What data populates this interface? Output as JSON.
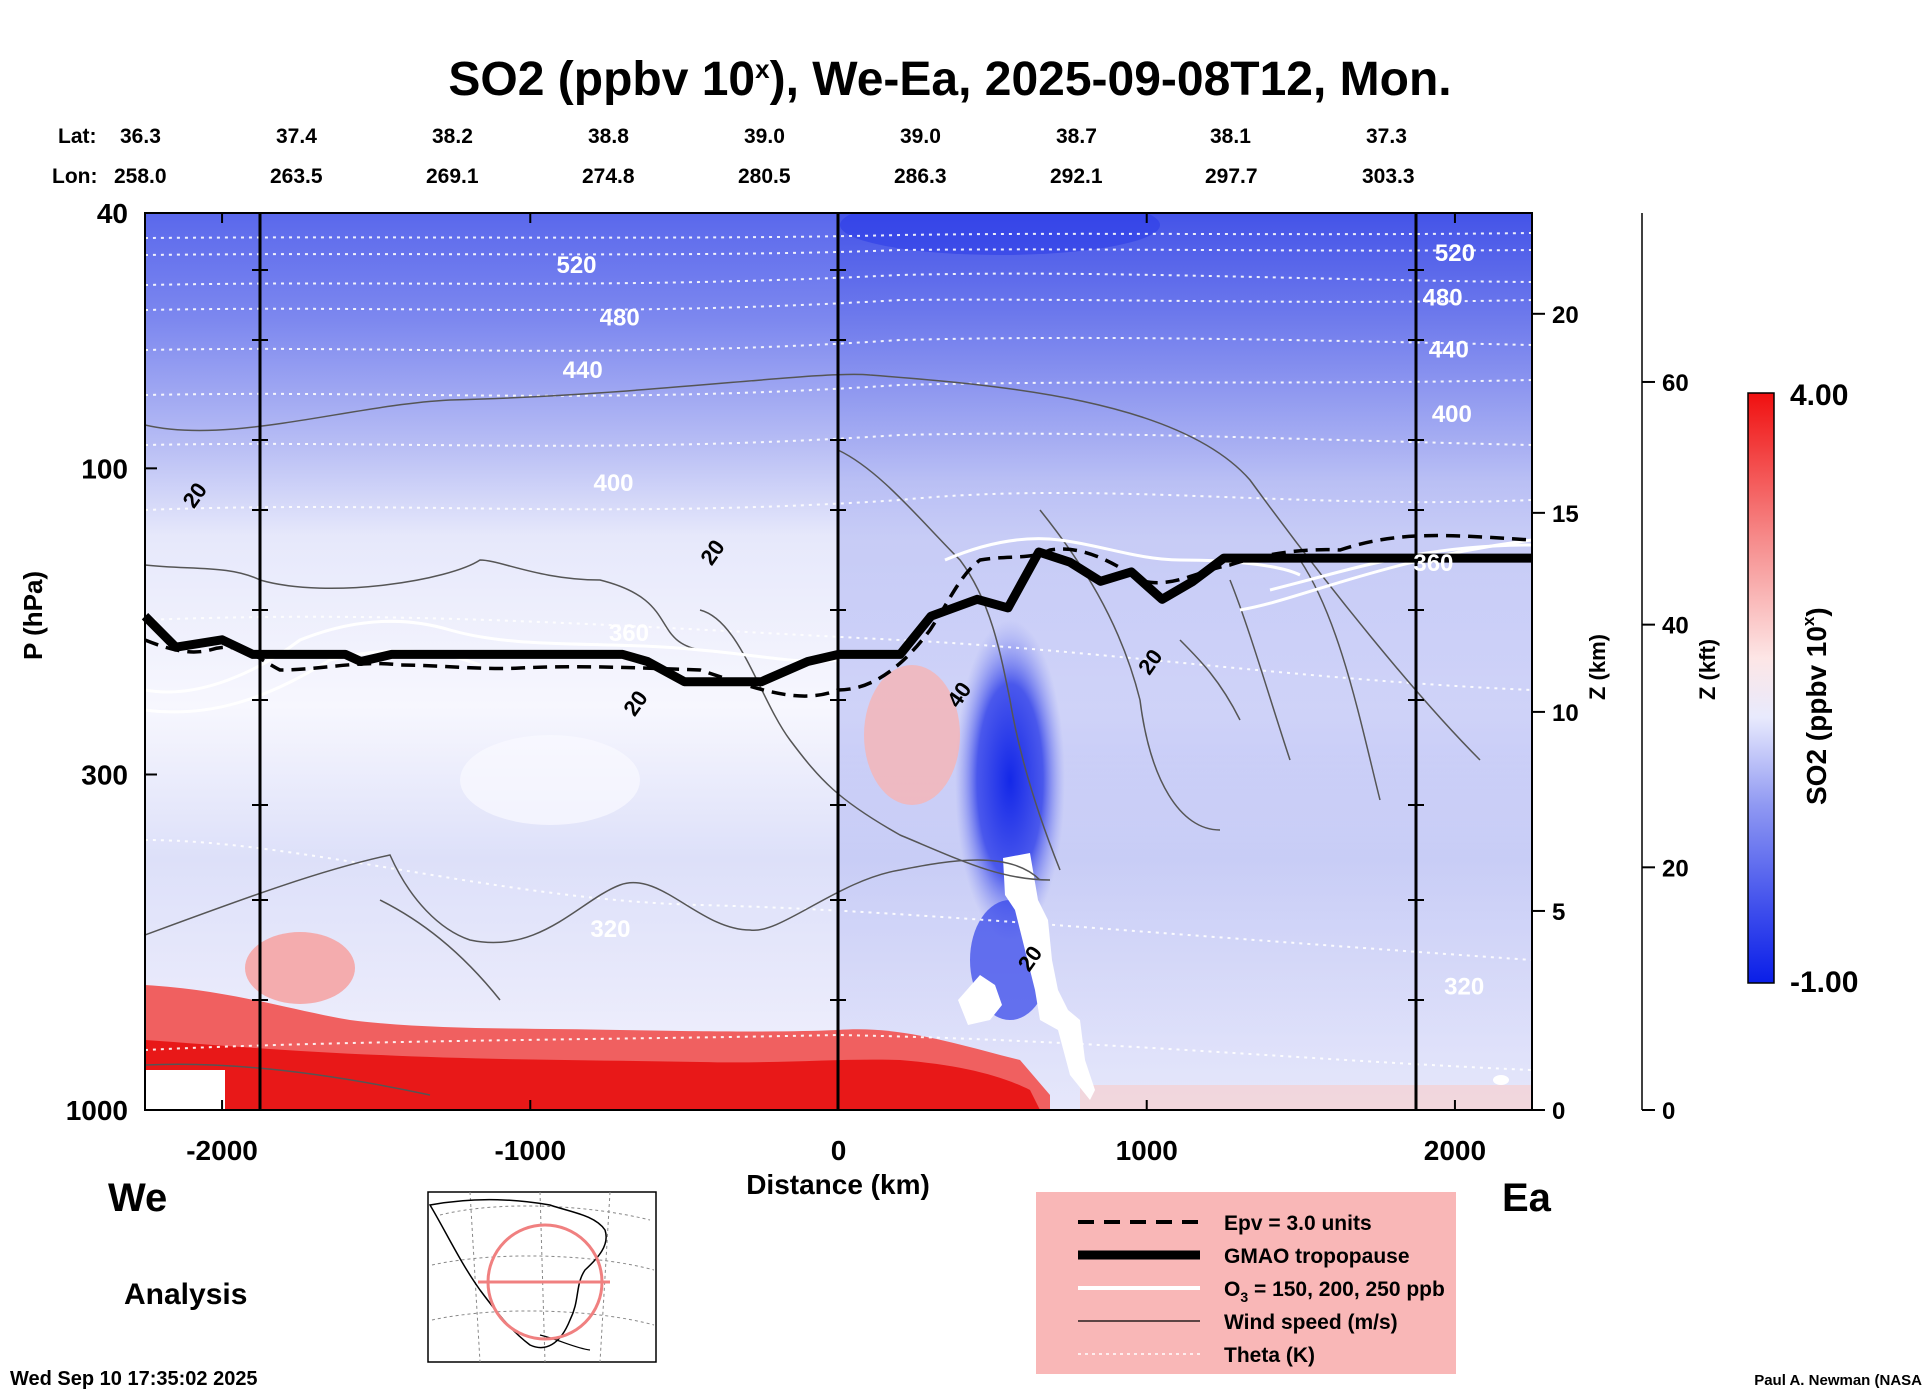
{
  "title": {
    "text": "SO2 (ppbv 10",
    "sup": "x",
    "rest": "), We-Ea, 2025-09-08T12, Mon."
  },
  "lat": {
    "label": "Lat:",
    "values": [
      "36.3",
      "37.4",
      "38.2",
      "38.8",
      "39.0",
      "39.0",
      "38.7",
      "38.1",
      "37.3"
    ]
  },
  "lon": {
    "label": "Lon:",
    "values": [
      "258.0",
      "263.5",
      "269.1",
      "274.8",
      "280.5",
      "286.3",
      "292.1",
      "297.7",
      "303.3"
    ]
  },
  "sides": {
    "west": "We",
    "east": "Ea"
  },
  "analysis": "Analysis",
  "footer": {
    "date": "Wed Sep 10 17:35:02 2025",
    "credit": "Paul A. Newman (NASA"
  },
  "colors": {
    "blue": "#0a1ee8",
    "red": "#f01010",
    "white": "#ffffff",
    "legend_bg": "#f9b7b7"
  },
  "chart_data": {
    "type": "heatmap",
    "title": "SO2 (ppbv 10^x), We-Ea, 2025-09-08T12, Mon.",
    "xlabel": "Distance (km)",
    "ylabel": "P (hPa)",
    "xlim": [
      -2250,
      2250
    ],
    "ylim": [
      1000,
      40
    ],
    "x_ticks": [
      -2000,
      -1000,
      0,
      1000,
      2000
    ],
    "x_tick_labels": [
      "-2000",
      "-1000",
      "0",
      "1000",
      "2000"
    ],
    "y_ticks": [
      40,
      100,
      300,
      1000
    ],
    "y_tick_labels": [
      "40",
      "100",
      "300",
      "1000"
    ],
    "z_km_ticks": [
      0,
      5,
      10,
      15,
      20
    ],
    "z_km_label": "Z (km)",
    "z_kft_ticks": [
      0,
      20,
      40,
      60
    ],
    "z_kft_label": "Z (kft)",
    "colorbar": {
      "label": "SO2 (ppbv 10",
      "label_sup": "x",
      "label_end": ")",
      "min": -1.0,
      "max": 4.0,
      "min_label": "-1.00",
      "max_label": "4.00"
    },
    "vertical_lines_km": [
      -1850,
      0,
      1850
    ],
    "theta_contours": [
      {
        "label": "520",
        "theta_k": 520,
        "pressure_hpa": 48
      },
      {
        "label": "480",
        "theta_k": 480,
        "pressure_hpa": 57
      },
      {
        "label": "440",
        "theta_k": 440,
        "pressure_hpa": 68
      },
      {
        "label": "400",
        "theta_k": 400,
        "pressure_hpa": 86
      },
      {
        "label": "360",
        "theta_k": 360,
        "pressure_hpa": 155
      },
      {
        "label": "320",
        "theta_k": 320,
        "pressure_hpa": 450
      }
    ],
    "theta_labels_plotted": [
      {
        "text": "520",
        "x_km": -850,
        "p_hpa": 48
      },
      {
        "text": "480",
        "x_km": -710,
        "p_hpa": 58
      },
      {
        "text": "440",
        "x_km": -830,
        "p_hpa": 70
      },
      {
        "text": "400",
        "x_km": -730,
        "p_hpa": 105
      },
      {
        "text": "360",
        "x_km": -680,
        "p_hpa": 180
      },
      {
        "text": "320",
        "x_km": -740,
        "p_hpa": 520
      },
      {
        "text": "520",
        "x_km": 2000,
        "p_hpa": 46
      },
      {
        "text": "480",
        "x_km": 1960,
        "p_hpa": 54
      },
      {
        "text": "440",
        "x_km": 1980,
        "p_hpa": 65
      },
      {
        "text": "400",
        "x_km": 1990,
        "p_hpa": 82
      },
      {
        "text": "360",
        "x_km": 1930,
        "p_hpa": 140
      },
      {
        "text": "320",
        "x_km": 2030,
        "p_hpa": 640
      }
    ],
    "wind_labels": [
      {
        "text": "20",
        "x_km": -2090,
        "p_hpa": 110
      },
      {
        "text": "20",
        "x_km": -410,
        "p_hpa": 135
      },
      {
        "text": "20",
        "x_km": -660,
        "p_hpa": 232
      },
      {
        "text": "40",
        "x_km": 390,
        "p_hpa": 225
      },
      {
        "text": "20",
        "x_km": 1010,
        "p_hpa": 200
      },
      {
        "text": "20",
        "x_km": 620,
        "p_hpa": 580
      }
    ],
    "tropopause_hpa": [
      {
        "x_km": -2250,
        "p": 170
      },
      {
        "x_km": -2150,
        "p": 190
      },
      {
        "x_km": -2000,
        "p": 185
      },
      {
        "x_km": -1900,
        "p": 195
      },
      {
        "x_km": -1600,
        "p": 195
      },
      {
        "x_km": -1550,
        "p": 200
      },
      {
        "x_km": -1450,
        "p": 195
      },
      {
        "x_km": -700,
        "p": 195
      },
      {
        "x_km": -620,
        "p": 200
      },
      {
        "x_km": -500,
        "p": 215
      },
      {
        "x_km": -250,
        "p": 215
      },
      {
        "x_km": -100,
        "p": 200
      },
      {
        "x_km": 0,
        "p": 195
      },
      {
        "x_km": 200,
        "p": 195
      },
      {
        "x_km": 300,
        "p": 170
      },
      {
        "x_km": 450,
        "p": 160
      },
      {
        "x_km": 550,
        "p": 165
      },
      {
        "x_km": 650,
        "p": 135
      },
      {
        "x_km": 750,
        "p": 140
      },
      {
        "x_km": 850,
        "p": 150
      },
      {
        "x_km": 950,
        "p": 145
      },
      {
        "x_km": 1050,
        "p": 160
      },
      {
        "x_km": 1150,
        "p": 150
      },
      {
        "x_km": 1250,
        "p": 138
      },
      {
        "x_km": 1400,
        "p": 138
      },
      {
        "x_km": 2250,
        "p": 138
      }
    ],
    "legend": [
      {
        "style": "dashed",
        "label": "Epv = 3.0 units"
      },
      {
        "style": "thick",
        "label": "GMAO tropopause"
      },
      {
        "style": "white",
        "label": "O",
        "label_sub": "3",
        "label_end": " = 150, 200, 250 ppb"
      },
      {
        "style": "thin",
        "label": "Wind speed (m/s)"
      },
      {
        "style": "dotted",
        "label": "Theta (K)"
      }
    ]
  }
}
